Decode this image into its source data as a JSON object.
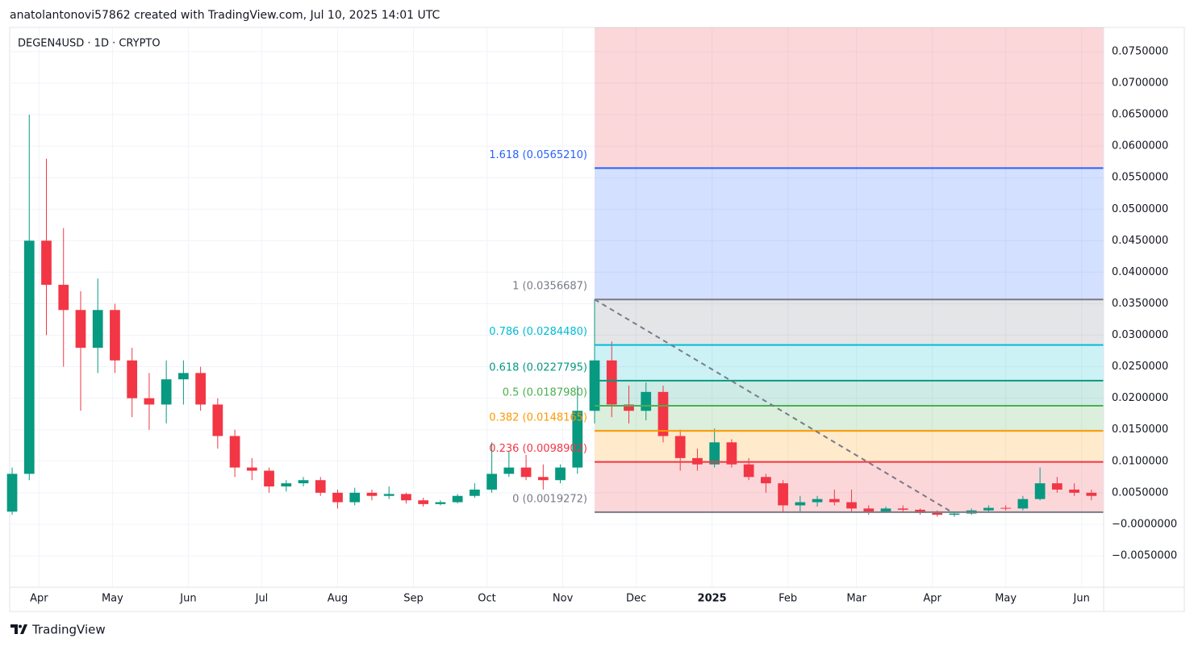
{
  "header": "anatolantonovi57862 created with TradingView.com, Jul 10, 2025 14:01 UTC",
  "footer": "TradingView",
  "chart_data": {
    "type": "candlestick",
    "title": "DEGEN4USD · 1D · CRYPTO",
    "up_color": "#089981",
    "down_color": "#f23645",
    "grid": true,
    "xlim": [
      "2024-03-20",
      "2025-06-10"
    ],
    "ylim": [
      -0.01,
      0.07884
    ],
    "yticks": [
      {
        "value": 0.075,
        "label": "0.0750000"
      },
      {
        "value": 0.07,
        "label": "0.0700000"
      },
      {
        "value": 0.065,
        "label": "0.0650000"
      },
      {
        "value": 0.06,
        "label": "0.0600000"
      },
      {
        "value": 0.055,
        "label": "0.0550000"
      },
      {
        "value": 0.05,
        "label": "0.0500000"
      },
      {
        "value": 0.045,
        "label": "0.0450000"
      },
      {
        "value": 0.04,
        "label": "0.0400000"
      },
      {
        "value": 0.035,
        "label": "0.0350000"
      },
      {
        "value": 0.03,
        "label": "0.0300000"
      },
      {
        "value": 0.025,
        "label": "0.0250000"
      },
      {
        "value": 0.02,
        "label": "0.0200000"
      },
      {
        "value": 0.015,
        "label": "0.0150000"
      },
      {
        "value": 0.01,
        "label": "0.0100000"
      },
      {
        "value": 0.005,
        "label": "0.0050000"
      },
      {
        "value": 0,
        "label": "−0.0000000"
      },
      {
        "value": -0.005,
        "label": "−0.0050000"
      }
    ],
    "xticks": [
      {
        "value": "2024-04-01",
        "label": "Apr"
      },
      {
        "value": "2024-05-01",
        "label": "May"
      },
      {
        "value": "2024-06-01",
        "label": "Jun"
      },
      {
        "value": "2024-07-01",
        "label": "Jul"
      },
      {
        "value": "2024-08-01",
        "label": "Aug"
      },
      {
        "value": "2024-09-01",
        "label": "Sep"
      },
      {
        "value": "2024-10-01",
        "label": "Oct"
      },
      {
        "value": "2024-11-01",
        "label": "Nov"
      },
      {
        "value": "2024-12-01",
        "label": "Dec"
      },
      {
        "value": "2025-01-01",
        "label": "2025"
      },
      {
        "value": "2025-02-01",
        "label": "Feb"
      },
      {
        "value": "2025-03-01",
        "label": "Mar"
      },
      {
        "value": "2025-04-01",
        "label": "Apr"
      },
      {
        "value": "2025-05-01",
        "label": "May"
      },
      {
        "value": "2025-06-01",
        "label": "Jun"
      }
    ],
    "x": [
      "2024-03-21",
      "2024-03-28",
      "2024-04-04",
      "2024-04-11",
      "2024-04-18",
      "2024-04-25",
      "2024-05-02",
      "2024-05-09",
      "2024-05-16",
      "2024-05-23",
      "2024-05-30",
      "2024-06-06",
      "2024-06-13",
      "2024-06-20",
      "2024-06-27",
      "2024-07-04",
      "2024-07-11",
      "2024-07-18",
      "2024-07-25",
      "2024-08-01",
      "2024-08-08",
      "2024-08-15",
      "2024-08-22",
      "2024-08-29",
      "2024-09-05",
      "2024-09-12",
      "2024-09-19",
      "2024-09-26",
      "2024-10-03",
      "2024-10-10",
      "2024-10-17",
      "2024-10-24",
      "2024-10-31",
      "2024-11-07",
      "2024-11-14",
      "2024-11-21",
      "2024-11-28",
      "2024-12-05",
      "2024-12-12",
      "2024-12-19",
      "2024-12-26",
      "2025-01-02",
      "2025-01-09",
      "2025-01-16",
      "2025-01-23",
      "2025-01-30",
      "2025-02-06",
      "2025-02-13",
      "2025-02-20",
      "2025-02-27",
      "2025-03-06",
      "2025-03-13",
      "2025-03-20",
      "2025-03-27",
      "2025-04-03",
      "2025-04-10",
      "2025-04-17",
      "2025-04-24",
      "2025-05-01",
      "2025-05-08",
      "2025-05-15",
      "2025-05-22",
      "2025-05-29",
      "2025-06-05"
    ],
    "open": [
      0.002,
      0.008,
      0.045,
      0.038,
      0.034,
      0.028,
      0.034,
      0.026,
      0.02,
      0.019,
      0.023,
      0.024,
      0.019,
      0.014,
      0.009,
      0.0085,
      0.006,
      0.0065,
      0.007,
      0.005,
      0.0035,
      0.005,
      0.0045,
      0.0048,
      0.0038,
      0.0032,
      0.0035,
      0.0045,
      0.0055,
      0.008,
      0.009,
      0.0075,
      0.007,
      0.009,
      0.018,
      0.026,
      0.019,
      0.018,
      0.021,
      0.014,
      0.0105,
      0.0095,
      0.013,
      0.0095,
      0.0075,
      0.0065,
      0.003,
      0.0035,
      0.004,
      0.0035,
      0.0025,
      0.002,
      0.0025,
      0.0023,
      0.0018,
      0.0015,
      0.0017,
      0.0022,
      0.0026,
      0.0025,
      0.004,
      0.0065,
      0.0055,
      0.005
    ],
    "high": [
      0.009,
      0.065,
      0.058,
      0.047,
      0.037,
      0.039,
      0.035,
      0.028,
      0.024,
      0.026,
      0.026,
      0.025,
      0.02,
      0.015,
      0.0105,
      0.009,
      0.007,
      0.0075,
      0.0075,
      0.0055,
      0.0058,
      0.0055,
      0.006,
      0.005,
      0.0042,
      0.0038,
      0.0048,
      0.0065,
      0.013,
      0.0115,
      0.011,
      0.0095,
      0.0095,
      0.022,
      0.0357,
      0.029,
      0.022,
      0.0225,
      0.022,
      0.015,
      0.012,
      0.0152,
      0.0135,
      0.0105,
      0.008,
      0.007,
      0.0045,
      0.0045,
      0.0055,
      0.0055,
      0.003,
      0.0028,
      0.003,
      0.0025,
      0.0022,
      0.002,
      0.0025,
      0.003,
      0.003,
      0.0045,
      0.009,
      0.0075,
      0.0065,
      0.0055
    ],
    "low": [
      0.0015,
      0.007,
      0.03,
      0.025,
      0.018,
      0.024,
      0.024,
      0.017,
      0.015,
      0.016,
      0.019,
      0.018,
      0.012,
      0.0075,
      0.007,
      0.005,
      0.0052,
      0.006,
      0.0045,
      0.0025,
      0.003,
      0.0038,
      0.004,
      0.0033,
      0.0028,
      0.003,
      0.0033,
      0.0042,
      0.005,
      0.0075,
      0.007,
      0.0055,
      0.0065,
      0.008,
      0.016,
      0.017,
      0.016,
      0.0165,
      0.013,
      0.0085,
      0.0085,
      0.009,
      0.009,
      0.007,
      0.005,
      0.002,
      0.002,
      0.0028,
      0.003,
      0.002,
      0.0015,
      0.0018,
      0.0019,
      0.0015,
      0.0012,
      0.0012,
      0.0015,
      0.002,
      0.0022,
      0.0022,
      0.0038,
      0.005,
      0.0045,
      0.0038
    ],
    "close": [
      0.008,
      0.045,
      0.038,
      0.034,
      0.028,
      0.034,
      0.026,
      0.02,
      0.019,
      0.023,
      0.024,
      0.019,
      0.014,
      0.009,
      0.0085,
      0.006,
      0.0065,
      0.007,
      0.005,
      0.0035,
      0.005,
      0.0045,
      0.0048,
      0.0038,
      0.0032,
      0.0035,
      0.0045,
      0.0055,
      0.008,
      0.009,
      0.0075,
      0.007,
      0.009,
      0.018,
      0.026,
      0.019,
      0.018,
      0.021,
      0.014,
      0.0105,
      0.0095,
      0.013,
      0.0095,
      0.0075,
      0.0065,
      0.003,
      0.0035,
      0.004,
      0.0035,
      0.0025,
      0.002,
      0.0025,
      0.0023,
      0.0018,
      0.0015,
      0.0017,
      0.0022,
      0.0026,
      0.0025,
      0.004,
      0.0065,
      0.0055,
      0.005,
      0.0045
    ],
    "fibonacci": {
      "start": {
        "date": "2024-11-14",
        "price": 0.0356687
      },
      "end": {
        "date": "2025-04-09",
        "price": 0.0019272
      },
      "levels": [
        {
          "label": "1.618 (0.0565210)",
          "value": 0.056521,
          "color": "#2962ff"
        },
        {
          "label": "1 (0.0356687)",
          "value": 0.0356687,
          "color": "#787b86"
        },
        {
          "label": "0.786 (0.0284480)",
          "value": 0.028448,
          "color": "#00bcd4"
        },
        {
          "label": "0.618 (0.0227795)",
          "value": 0.0227795,
          "color": "#089981"
        },
        {
          "label": "0.5 (0.0187980)",
          "value": 0.018798,
          "color": "#4caf50"
        },
        {
          "label": "0.382 (0.0148165)",
          "value": 0.0148165,
          "color": "#ff9800"
        },
        {
          "label": "0.236 (0.0098902)",
          "value": 0.0098902,
          "color": "#f23645"
        },
        {
          "label": "0 (0.0019272)",
          "value": 0.0019272,
          "color": "#787b86"
        }
      ]
    }
  }
}
